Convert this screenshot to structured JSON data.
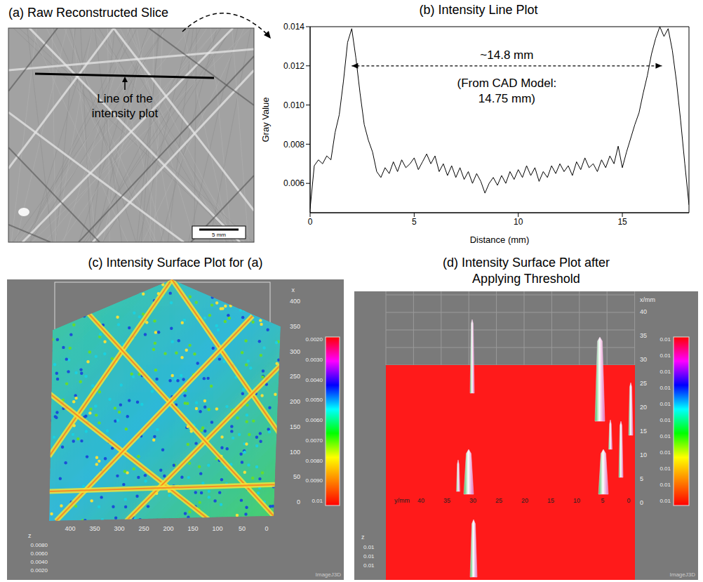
{
  "panel_a": {
    "title": "(a) Raw Reconstructed Slice",
    "line_label": "Line of the intensity plot",
    "scale_bar": "5 mm"
  },
  "chart_data": {
    "type": "line",
    "title": "(b) Intensity Line Plot",
    "x_label": "Distance (mm)",
    "y_label": "Gray Value",
    "x": [
      0,
      0.2,
      0.4,
      0.6,
      0.8,
      1.0,
      1.2,
      1.4,
      1.6,
      1.8,
      2.0,
      2.2,
      2.4,
      2.6,
      2.8,
      3.0,
      3.2,
      3.4,
      3.6,
      3.8,
      4.0,
      4.2,
      4.4,
      4.6,
      4.8,
      5.0,
      5.2,
      5.4,
      5.6,
      5.8,
      6.0,
      6.2,
      6.4,
      6.6,
      6.8,
      7.0,
      7.2,
      7.4,
      7.6,
      7.8,
      8.0,
      8.2,
      8.4,
      8.6,
      8.8,
      9.0,
      9.2,
      9.4,
      9.6,
      9.8,
      10.0,
      10.2,
      10.4,
      10.6,
      10.8,
      11.0,
      11.2,
      11.4,
      11.6,
      11.8,
      12.0,
      12.2,
      12.4,
      12.6,
      12.8,
      13.0,
      13.2,
      13.4,
      13.6,
      13.8,
      14.0,
      14.2,
      14.4,
      14.6,
      14.8,
      15.0,
      15.2,
      15.4,
      15.6,
      15.8,
      16.0,
      16.2,
      16.4,
      16.6,
      16.8,
      17.0,
      17.2,
      17.4,
      17.6,
      17.8,
      18.0,
      18.2
    ],
    "values": [
      0.0047,
      0.0069,
      0.0072,
      0.007,
      0.0074,
      0.0072,
      0.0086,
      0.0095,
      0.0112,
      0.0132,
      0.0139,
      0.0124,
      0.0106,
      0.009,
      0.0082,
      0.0076,
      0.0066,
      0.0063,
      0.0068,
      0.0065,
      0.0071,
      0.0066,
      0.0072,
      0.0068,
      0.007,
      0.0073,
      0.0067,
      0.0071,
      0.0075,
      0.007,
      0.0074,
      0.0066,
      0.007,
      0.0064,
      0.0069,
      0.0063,
      0.0068,
      0.0062,
      0.0066,
      0.006,
      0.0065,
      0.0061,
      0.0055,
      0.006,
      0.0063,
      0.0059,
      0.0064,
      0.006,
      0.0066,
      0.0062,
      0.0067,
      0.0063,
      0.0069,
      0.0064,
      0.0068,
      0.0061,
      0.0066,
      0.0063,
      0.0069,
      0.0065,
      0.007,
      0.0066,
      0.0069,
      0.0064,
      0.0071,
      0.0067,
      0.0073,
      0.0068,
      0.007,
      0.0066,
      0.0072,
      0.0068,
      0.0074,
      0.007,
      0.0079,
      0.0068,
      0.0076,
      0.0083,
      0.009,
      0.0096,
      0.0106,
      0.0115,
      0.0126,
      0.0134,
      0.014,
      0.0135,
      0.0139,
      0.0128,
      0.0112,
      0.0092,
      0.007,
      0.0049
    ],
    "color": "#000000",
    "xlim": [
      0,
      18.2
    ],
    "ylim": [
      0.0045,
      0.014
    ],
    "xticks": [
      0,
      5,
      10,
      15
    ],
    "yticks": [
      0.006,
      0.008,
      {
        "value": 0.01,
        "label": "0.010"
      },
      0.012,
      0.014
    ],
    "annotations": [
      {
        "text": "~14.8 mm",
        "x": [
          2.0,
          16.9
        ],
        "y": 0.012
      },
      {
        "text": "(From CAD Model: 14.75 mm)"
      }
    ]
  },
  "panel_c": {
    "title": "(c) Intensity Surface Plot for (a)",
    "x_title": "x",
    "x_ticks": [
      400,
      350,
      300,
      250,
      200,
      150,
      100,
      50,
      0
    ],
    "bottom_ticks": [
      400,
      350,
      300,
      250,
      200,
      150,
      100,
      50,
      0
    ],
    "z_title": "z",
    "z_ticks": [
      "0.0080",
      "0.0060",
      "0.0040",
      "0.0020"
    ],
    "colorbar_labels": [
      "0.0020",
      "0.0030",
      "0.0040",
      "0.0050",
      "0.0060",
      "0.0070",
      "0.0080",
      "0.0090",
      "0.01"
    ],
    "watermark": "ImageJ3D"
  },
  "panel_d": {
    "title": "(d) Intensity Surface Plot after Applying Threshold",
    "x_title": "x/mm",
    "x_ticks": [
      40,
      35,
      30,
      25,
      20,
      15,
      10,
      5,
      0
    ],
    "y_title": "y/mm",
    "y_ticks": [
      40,
      35,
      30,
      25,
      20,
      15,
      10,
      5,
      0
    ],
    "z_title": "z",
    "z_ticks": [
      "0.01",
      "0.01",
      "0.01"
    ],
    "colorbar_labels": [
      "0.01",
      "0.01",
      "0.01",
      "0.01",
      "0.01",
      "0.01",
      "0.01",
      "0.01",
      "0.01",
      "0.01",
      "0.01"
    ],
    "watermark": "ImageJ3D"
  }
}
